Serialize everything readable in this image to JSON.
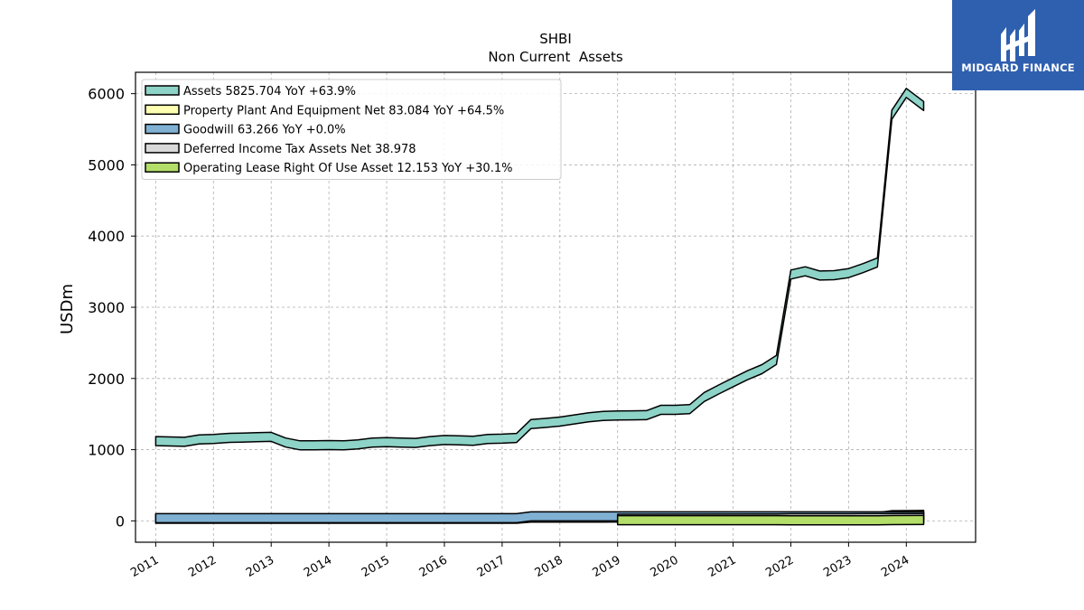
{
  "logo": {
    "text": "MIDGARD FINANCE",
    "bg": "#2f5faf"
  },
  "chart_data": {
    "type": "area",
    "title": "SHBI",
    "subtitle": "Non Current  Assets",
    "ylabel": "USDm",
    "ylim": [
      -300,
      6300
    ],
    "xlim": [
      2010.65,
      2025.2
    ],
    "yticks": [
      0,
      1000,
      2000,
      3000,
      4000,
      5000,
      6000
    ],
    "xticks": [
      2011,
      2012,
      2013,
      2014,
      2015,
      2016,
      2017,
      2018,
      2019,
      2020,
      2021,
      2022,
      2023,
      2024
    ],
    "grid": true,
    "legend_position": "top-left",
    "series": [
      {
        "name": "Assets  5825.704 YoY +63.9%",
        "color": "#8dd3c7",
        "x": [
          2011.0,
          2011.25,
          2011.5,
          2011.75,
          2012.0,
          2012.25,
          2012.5,
          2012.75,
          2013.0,
          2013.25,
          2013.5,
          2013.75,
          2014.0,
          2014.25,
          2014.5,
          2014.75,
          2015.0,
          2015.25,
          2015.5,
          2015.75,
          2016.0,
          2016.25,
          2016.5,
          2016.75,
          2017.0,
          2017.25,
          2017.5,
          2017.75,
          2018.0,
          2018.25,
          2018.5,
          2018.75,
          2019.0,
          2019.25,
          2019.5,
          2019.75,
          2020.0,
          2020.25,
          2020.5,
          2020.75,
          2021.0,
          2021.25,
          2021.5,
          2021.75,
          2022.0,
          2022.25,
          2022.5,
          2022.75,
          2023.0,
          2023.25,
          2023.5,
          2023.75,
          2024.0,
          2024.3
        ],
        "values": [
          1120,
          1115,
          1110,
          1145,
          1150,
          1165,
          1170,
          1175,
          1180,
          1100,
          1060,
          1060,
          1065,
          1060,
          1075,
          1100,
          1105,
          1100,
          1095,
          1120,
          1135,
          1130,
          1125,
          1150,
          1155,
          1165,
          1360,
          1375,
          1395,
          1425,
          1455,
          1475,
          1480,
          1482,
          1485,
          1560,
          1560,
          1570,
          1740,
          1845,
          1945,
          2045,
          2130,
          2260,
          3460,
          3505,
          3445,
          3450,
          3480,
          3550,
          3630,
          5705,
          6010,
          5826
        ]
      },
      {
        "name": "Property Plant And Equipment Net  83.084 YoY +64.5%",
        "color": "#ffffb3",
        "x": [
          2011.0,
          2017.25,
          2017.5,
          2018.75,
          2019.0,
          2021.75,
          2022.0,
          2023.5,
          2023.75,
          2024.3
        ],
        "values": [
          30,
          30,
          45,
          45,
          48,
          50,
          51,
          52,
          80,
          83
        ]
      },
      {
        "name": "Goodwill  63.266 YoY +0.0%",
        "color": "#80b1d3",
        "x": [
          2011.0,
          2017.25,
          2017.5,
          2024.3
        ],
        "values": [
          37,
          37,
          63,
          63
        ]
      },
      {
        "name": "Deferred Income Tax Assets Net  38.978",
        "color": "#d9d9d9",
        "x": [
          2019.0,
          2021.75,
          2022.0,
          2023.0,
          2023.25,
          2024.3
        ],
        "values": [
          30,
          32,
          36,
          36,
          38,
          39
        ]
      },
      {
        "name": "Operating Lease Right Of Use Asset  12.153 YoY +30.1%",
        "color": "#b3de69",
        "x": [
          2019.0,
          2021.75,
          2022.0,
          2023.5,
          2023.75,
          2024.3
        ],
        "values": [
          10,
          10,
          9,
          9,
          11,
          12
        ]
      }
    ]
  }
}
